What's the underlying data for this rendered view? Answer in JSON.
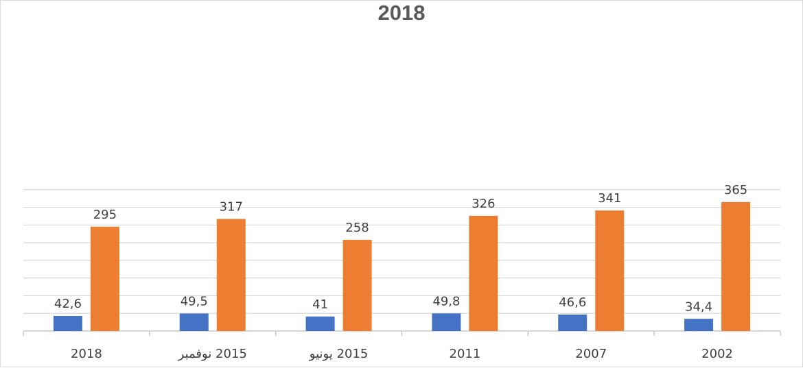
{
  "chart_data": {
    "type": "bar",
    "title": "2018",
    "xlabel": "",
    "ylabel": "",
    "categories": [
      "2018",
      "2015 نوفمبر",
      "2015 يونيو",
      "2011",
      "2007",
      "2002"
    ],
    "series": [
      {
        "values": [
          42.6,
          49.5,
          41,
          49.8,
          46.6,
          34.4
        ],
        "labels": [
          "42,6",
          "49,5",
          "41",
          "49,8",
          "46,6",
          "34,4"
        ],
        "color": "#4472c4"
      },
      {
        "values": [
          295,
          317,
          258,
          326,
          341,
          365
        ],
        "labels": [
          "295",
          "317",
          "258",
          "326",
          "341",
          "365"
        ],
        "color": "#ed7d31"
      }
    ],
    "ylim": [
      0,
      400
    ],
    "grid": true,
    "legend": "none"
  }
}
